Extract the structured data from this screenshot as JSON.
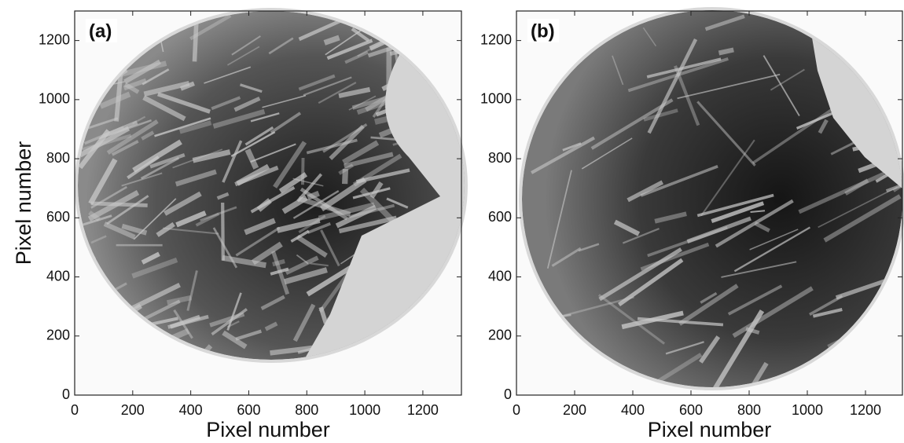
{
  "chart_data": [
    {
      "type": "image",
      "label": "(a)",
      "xlabel": "Pixel number",
      "ylabel": "Pixel number",
      "xlim": [
        0,
        1333
      ],
      "ylim": [
        0,
        1300
      ],
      "xticks": [
        0,
        200,
        400,
        600,
        800,
        1000,
        1200
      ],
      "yticks": [
        0,
        200,
        400,
        600,
        800,
        1000,
        1200
      ]
    },
    {
      "type": "image",
      "label": "(b)",
      "xlabel": "Pixel number",
      "xlim": [
        0,
        1327
      ],
      "ylim": [
        0,
        1300
      ],
      "xticks": [
        0,
        200,
        400,
        600,
        800,
        1000,
        1200
      ],
      "yticks": [
        0,
        200,
        400,
        600,
        800,
        1000,
        1200
      ]
    }
  ]
}
